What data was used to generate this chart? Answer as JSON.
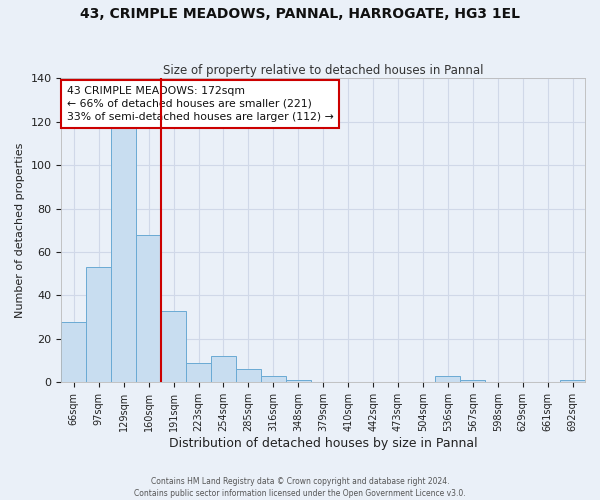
{
  "title1": "43, CRIMPLE MEADOWS, PANNAL, HARROGATE, HG3 1EL",
  "title2": "Size of property relative to detached houses in Pannal",
  "xlabel": "Distribution of detached houses by size in Pannal",
  "ylabel": "Number of detached properties",
  "bar_labels": [
    "66sqm",
    "97sqm",
    "129sqm",
    "160sqm",
    "191sqm",
    "223sqm",
    "254sqm",
    "285sqm",
    "316sqm",
    "348sqm",
    "379sqm",
    "410sqm",
    "442sqm",
    "473sqm",
    "504sqm",
    "536sqm",
    "567sqm",
    "598sqm",
    "629sqm",
    "661sqm",
    "692sqm"
  ],
  "bar_heights": [
    28,
    53,
    118,
    68,
    33,
    9,
    12,
    6,
    3,
    1,
    0,
    0,
    0,
    0,
    0,
    3,
    1,
    0,
    0,
    0,
    1
  ],
  "bar_color": "#c8ddf0",
  "bar_edge_color": "#6aaad4",
  "vline_x": 3.5,
  "vline_color": "#cc0000",
  "ylim": [
    0,
    140
  ],
  "annotation_title": "43 CRIMPLE MEADOWS: 172sqm",
  "annotation_line1": "← 66% of detached houses are smaller (221)",
  "annotation_line2": "33% of semi-detached houses are larger (112) →",
  "annotation_box_facecolor": "#ffffff",
  "annotation_box_edgecolor": "#cc0000",
  "grid_color": "#d0d8e8",
  "bg_color": "#eaf0f8",
  "footer1": "Contains HM Land Registry data © Crown copyright and database right 2024.",
  "footer2": "Contains public sector information licensed under the Open Government Licence v3.0."
}
